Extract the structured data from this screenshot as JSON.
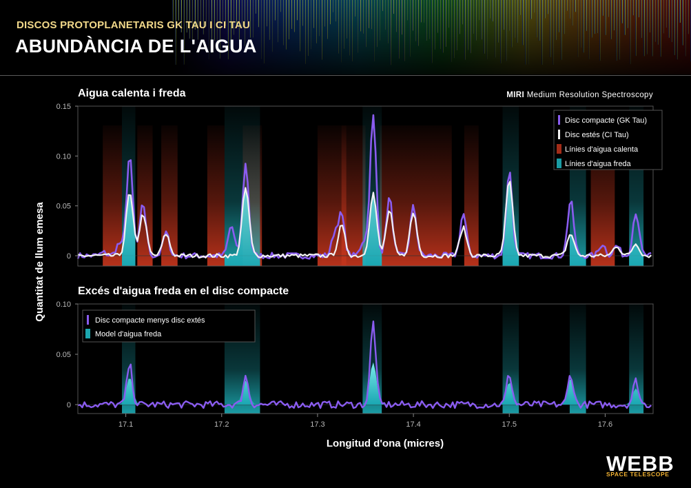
{
  "header": {
    "subtitle": "DISCOS PROTOPLANETARIS GK TAU I CI TAU",
    "title": "ABUNDÀNCIA DE L'AIGUA"
  },
  "logo": {
    "word": "WEBB",
    "sub": "SPACE TELESCOPE"
  },
  "colors": {
    "gk": "#8a5cf0",
    "ci": "#f2f2f2",
    "hot": "#c0341c",
    "cold": "#1fb8c2",
    "subtitle": "#f2d98a",
    "logo_sub": "#f2b232"
  },
  "chart_data": {
    "type": "line",
    "xlabel": "Longitud d'ona (micres)",
    "ylabel": "Quantitat de llum emesa",
    "xlim": [
      17.05,
      17.65
    ],
    "x_ticks": [
      "17.1",
      "17.2",
      "17.3",
      "17.4",
      "17.5",
      "17.6"
    ],
    "instrument_bold": "MIRI",
    "instrument_rest": "Medium Resolution Spectroscopy",
    "panels": [
      {
        "title": "Aigua calenta i freda",
        "ylim": [
          -0.01,
          0.15
        ],
        "y_ticks": [
          "0",
          "0.05",
          "0.10",
          "0.15"
        ],
        "legend": [
          "Disc compacte (GK Tau)",
          "Disc estés  (CI Tau)",
          "Línies d'aigua calenta",
          "Línies d'aigua freda"
        ],
        "hot_bands": [
          [
            17.076,
            17.096
          ],
          [
            17.112,
            17.128
          ],
          [
            17.137,
            17.154
          ],
          [
            17.185,
            17.203
          ],
          [
            17.222,
            17.242
          ],
          [
            17.3,
            17.33
          ],
          [
            17.325,
            17.35
          ],
          [
            17.365,
            17.44
          ],
          [
            17.453,
            17.468
          ],
          [
            17.585,
            17.61
          ]
        ],
        "cold_bands": [
          [
            17.096,
            17.11
          ],
          [
            17.203,
            17.24
          ],
          [
            17.347,
            17.367
          ],
          [
            17.493,
            17.51
          ],
          [
            17.563,
            17.58
          ],
          [
            17.625,
            17.64
          ]
        ],
        "series": [
          {
            "name": "Disc compacte (GK Tau)",
            "peaks": [
              [
                17.077,
                0.003
              ],
              [
                17.093,
                0.012
              ],
              [
                17.104,
                0.1
              ],
              [
                17.118,
                0.052
              ],
              [
                17.142,
                0.023
              ],
              [
                17.21,
                0.03
              ],
              [
                17.225,
                0.092
              ],
              [
                17.318,
                0.022
              ],
              [
                17.325,
                0.04
              ],
              [
                17.348,
                0.015
              ],
              [
                17.358,
                0.14
              ],
              [
                17.375,
                0.058
              ],
              [
                17.4,
                0.049
              ],
              [
                17.452,
                0.042
              ],
              [
                17.5,
                0.085
              ],
              [
                17.564,
                0.055
              ],
              [
                17.597,
                0.012
              ],
              [
                17.612,
                0.01
              ],
              [
                17.632,
                0.044
              ]
            ]
          },
          {
            "name": "Disc estés  (CI Tau)",
            "peaks": [
              [
                17.104,
                0.063
              ],
              [
                17.118,
                0.042
              ],
              [
                17.142,
                0.022
              ],
              [
                17.225,
                0.068
              ],
              [
                17.325,
                0.03
              ],
              [
                17.358,
                0.063
              ],
              [
                17.375,
                0.045
              ],
              [
                17.4,
                0.043
              ],
              [
                17.452,
                0.028
              ],
              [
                17.5,
                0.075
              ],
              [
                17.564,
                0.022
              ],
              [
                17.612,
                0.01
              ],
              [
                17.632,
                0.012
              ]
            ]
          }
        ]
      },
      {
        "title": "Excés d'aigua freda en el disc compacte",
        "ylim": [
          -0.01,
          0.1
        ],
        "y_ticks": [
          "0",
          "0.05",
          "0.10"
        ],
        "legend": [
          "Disc compacte menys disc extés",
          "Model d'aigua freda"
        ],
        "cold_bands": [
          [
            17.096,
            17.11
          ],
          [
            17.203,
            17.24
          ],
          [
            17.347,
            17.367
          ],
          [
            17.493,
            17.51
          ],
          [
            17.563,
            17.58
          ],
          [
            17.625,
            17.64
          ]
        ],
        "series": [
          {
            "name": "Disc compacte menys disc extés",
            "peaks": [
              [
                17.104,
                0.04
              ],
              [
                17.225,
                0.028
              ],
              [
                17.358,
                0.082
              ],
              [
                17.5,
                0.03
              ],
              [
                17.564,
                0.03
              ],
              [
                17.632,
                0.024
              ]
            ]
          },
          {
            "name": "Model d'aigua freda",
            "peaks": [
              [
                17.104,
                0.027
              ],
              [
                17.225,
                0.024
              ],
              [
                17.358,
                0.042
              ],
              [
                17.5,
                0.022
              ],
              [
                17.564,
                0.026
              ],
              [
                17.632,
                0.016
              ]
            ]
          }
        ]
      }
    ]
  }
}
